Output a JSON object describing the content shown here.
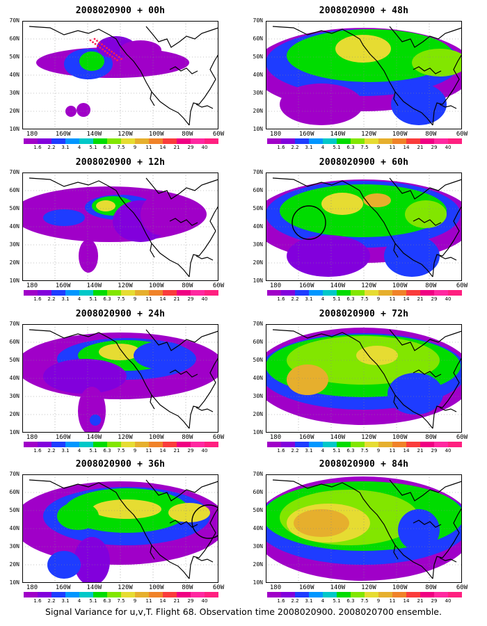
{
  "caption": "Signal Variance for u,v,T. Flight 68. Observation time 2008020900. 2008020700 ensemble.",
  "axes": {
    "lat_labels": [
      "70N",
      "60N",
      "50N",
      "40N",
      "30N",
      "20N",
      "10N"
    ],
    "lon_labels": [
      "180",
      "160W",
      "140W",
      "120W",
      "100W",
      "80W",
      "60W"
    ]
  },
  "colorbar": {
    "labels": [
      "1.6",
      "2.2",
      "3.1",
      "4",
      "5.1",
      "6.3",
      "7.5",
      "9",
      "11",
      "14",
      "21",
      "29",
      "40"
    ],
    "colors": [
      "#a000c8",
      "#8200dc",
      "#1e3cff",
      "#0096ff",
      "#00c8c8",
      "#00dc00",
      "#82e600",
      "#e6dc32",
      "#e6af2d",
      "#f08228",
      "#fa3c3c",
      "#f00082",
      "#ff28a0"
    ]
  },
  "panels": [
    {
      "title": "2008020900 + 00h",
      "lead": "00h",
      "marker": "dots"
    },
    {
      "title": "2008020900 + 12h",
      "lead": "12h",
      "marker": "none"
    },
    {
      "title": "2008020900 + 24h",
      "lead": "24h",
      "marker": "none"
    },
    {
      "title": "2008020900 + 36h",
      "lead": "36h",
      "marker": "circle-east"
    },
    {
      "title": "2008020900 + 48h",
      "lead": "48h",
      "marker": "none"
    },
    {
      "title": "2008020900 + 60h",
      "lead": "60h",
      "marker": "circle-west"
    },
    {
      "title": "2008020900 + 72h",
      "lead": "72h",
      "marker": "none"
    },
    {
      "title": "2008020900 + 84h",
      "lead": "84h",
      "marker": "none"
    }
  ]
}
